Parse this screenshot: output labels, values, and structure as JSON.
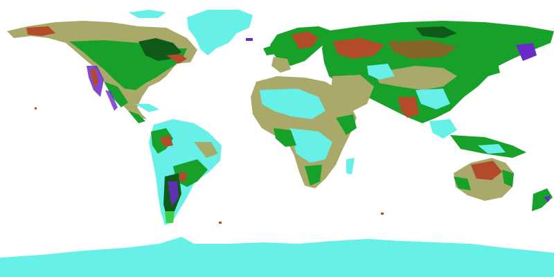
{
  "map": {
    "projection": "equirectangular",
    "background_color": "#ffffff",
    "legend": [],
    "classes": [
      {
        "name": "ice-or-cold-barren",
        "color": "#66f0e8"
      },
      {
        "name": "grassland-or-steppe",
        "color": "#a9a96a"
      },
      {
        "name": "forest",
        "color": "#17a02a"
      },
      {
        "name": "dense-forest",
        "color": "#0f5a18"
      },
      {
        "name": "bright-vegetation",
        "color": "#3fcf43"
      },
      {
        "name": "cropland-or-shrub",
        "color": "#b34a2a"
      },
      {
        "name": "highland",
        "color": "#6a2cc8"
      }
    ]
  }
}
